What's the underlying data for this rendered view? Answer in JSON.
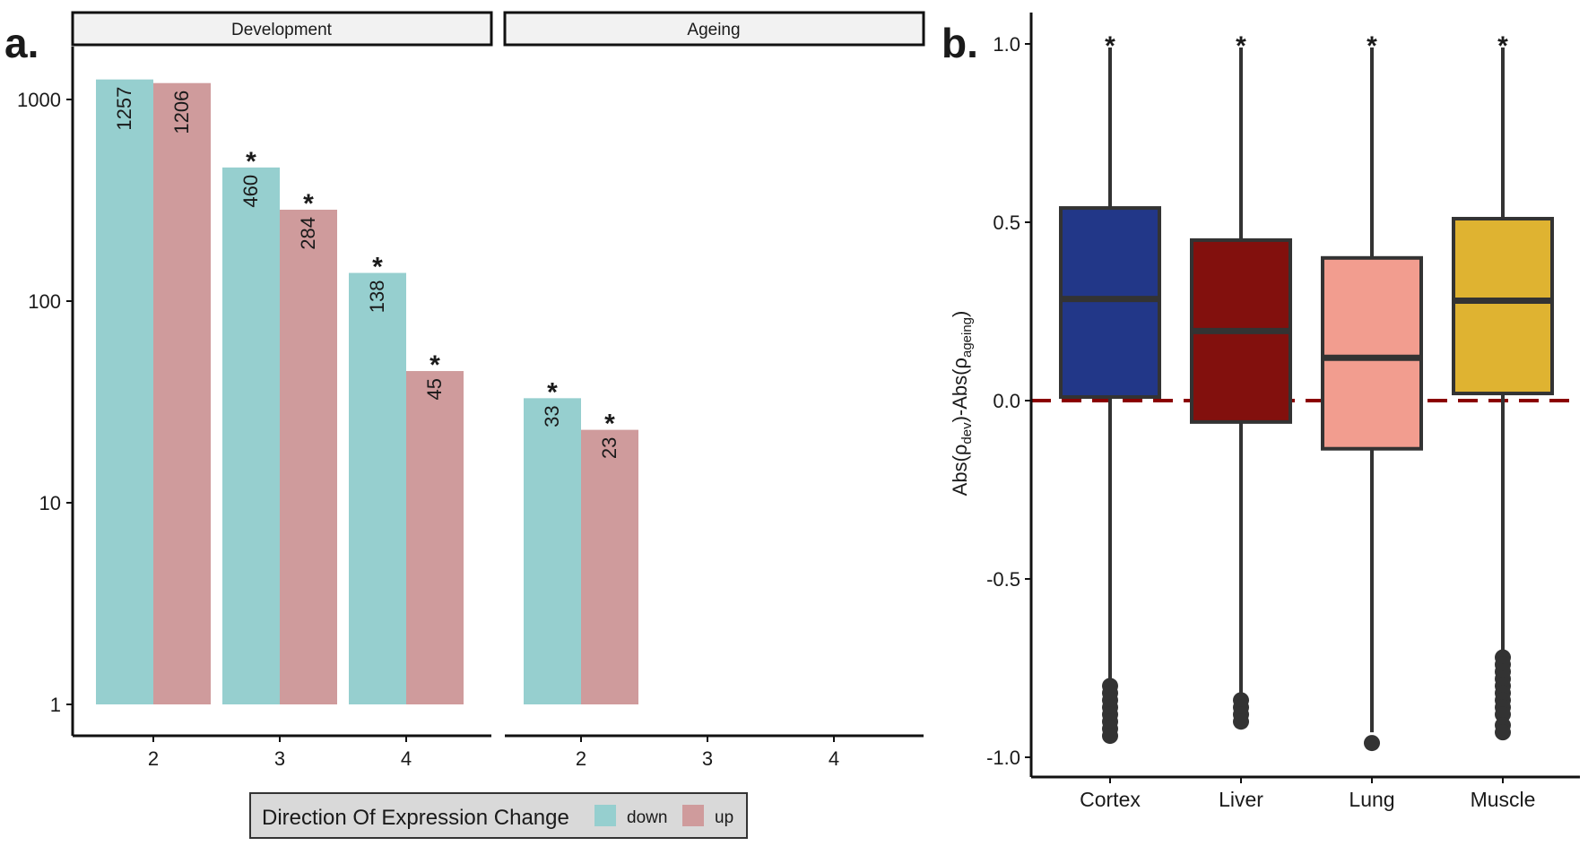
{
  "panels": {
    "a": {
      "label": "a."
    },
    "b": {
      "label": "b."
    }
  },
  "chart_data": [
    {
      "type": "bar",
      "panel": "a.",
      "scale": "log10",
      "facets": [
        "Development",
        "Ageing"
      ],
      "categories": [
        "2",
        "3",
        "4"
      ],
      "yticks": [
        "1",
        "10",
        "100",
        "1000"
      ],
      "ylim": [
        1,
        1300
      ],
      "series": [
        {
          "name": "down",
          "color": "#96cfcf",
          "values": {
            "Development": [
              1257,
              460,
              138
            ],
            "Ageing": [
              33,
              null,
              null
            ]
          },
          "significant": {
            "Development": [
              false,
              true,
              true
            ],
            "Ageing": [
              true,
              false,
              false
            ]
          }
        },
        {
          "name": "up",
          "color": "#cf9b9c",
          "values": {
            "Development": [
              1206,
              284,
              45
            ],
            "Ageing": [
              23,
              null,
              null
            ]
          },
          "significant": {
            "Development": [
              false,
              true,
              true
            ],
            "Ageing": [
              true,
              false,
              false
            ]
          }
        }
      ],
      "significance_marker": "*",
      "legend": {
        "title": "Direction Of Expression Change",
        "placement": "bottom"
      },
      "grid": false
    },
    {
      "type": "box",
      "panel": "b.",
      "ylabel": {
        "prefix": "Abs(ρ",
        "sub1": "dev",
        "middle": ")-Abs(ρ",
        "sub2": "ageing",
        "suffix": ")"
      },
      "yticks": [
        "-1.0",
        "-0.5",
        "0.0",
        "0.5",
        "1.0"
      ],
      "ylim": [
        -1.05,
        1.1
      ],
      "reference_line": {
        "y": 0,
        "color": "#8b0000",
        "style": "dashed"
      },
      "categories": [
        "Cortex",
        "Liver",
        "Lung",
        "Muscle"
      ],
      "boxes": [
        {
          "name": "Cortex",
          "color": "#223788",
          "q1": 0.01,
          "median": 0.285,
          "q3": 0.54,
          "whisker_low": -0.78,
          "whisker_high": 0.99,
          "outliers": [
            -0.8,
            -0.82,
            -0.84,
            -0.86,
            -0.88,
            -0.9,
            -0.92,
            -0.94
          ]
        },
        {
          "name": "Liver",
          "color": "#82100d",
          "q1": -0.06,
          "median": 0.195,
          "q3": 0.45,
          "whisker_low": -0.83,
          "whisker_high": 0.99,
          "outliers": [
            -0.84,
            -0.86,
            -0.88,
            -0.9
          ]
        },
        {
          "name": "Lung",
          "color": "#f29d8f",
          "q1": -0.135,
          "median": 0.12,
          "q3": 0.4,
          "whisker_low": -0.93,
          "whisker_high": 0.99,
          "outliers": [
            -0.96
          ]
        },
        {
          "name": "Muscle",
          "color": "#dfb331",
          "q1": 0.02,
          "median": 0.28,
          "q3": 0.51,
          "whisker_low": -0.7,
          "whisker_high": 0.99,
          "outliers": [
            -0.72,
            -0.74,
            -0.76,
            -0.78,
            -0.8,
            -0.82,
            -0.84,
            -0.86,
            -0.88,
            -0.91,
            -0.93
          ]
        }
      ],
      "significance_marker": "*",
      "grid": false
    }
  ]
}
